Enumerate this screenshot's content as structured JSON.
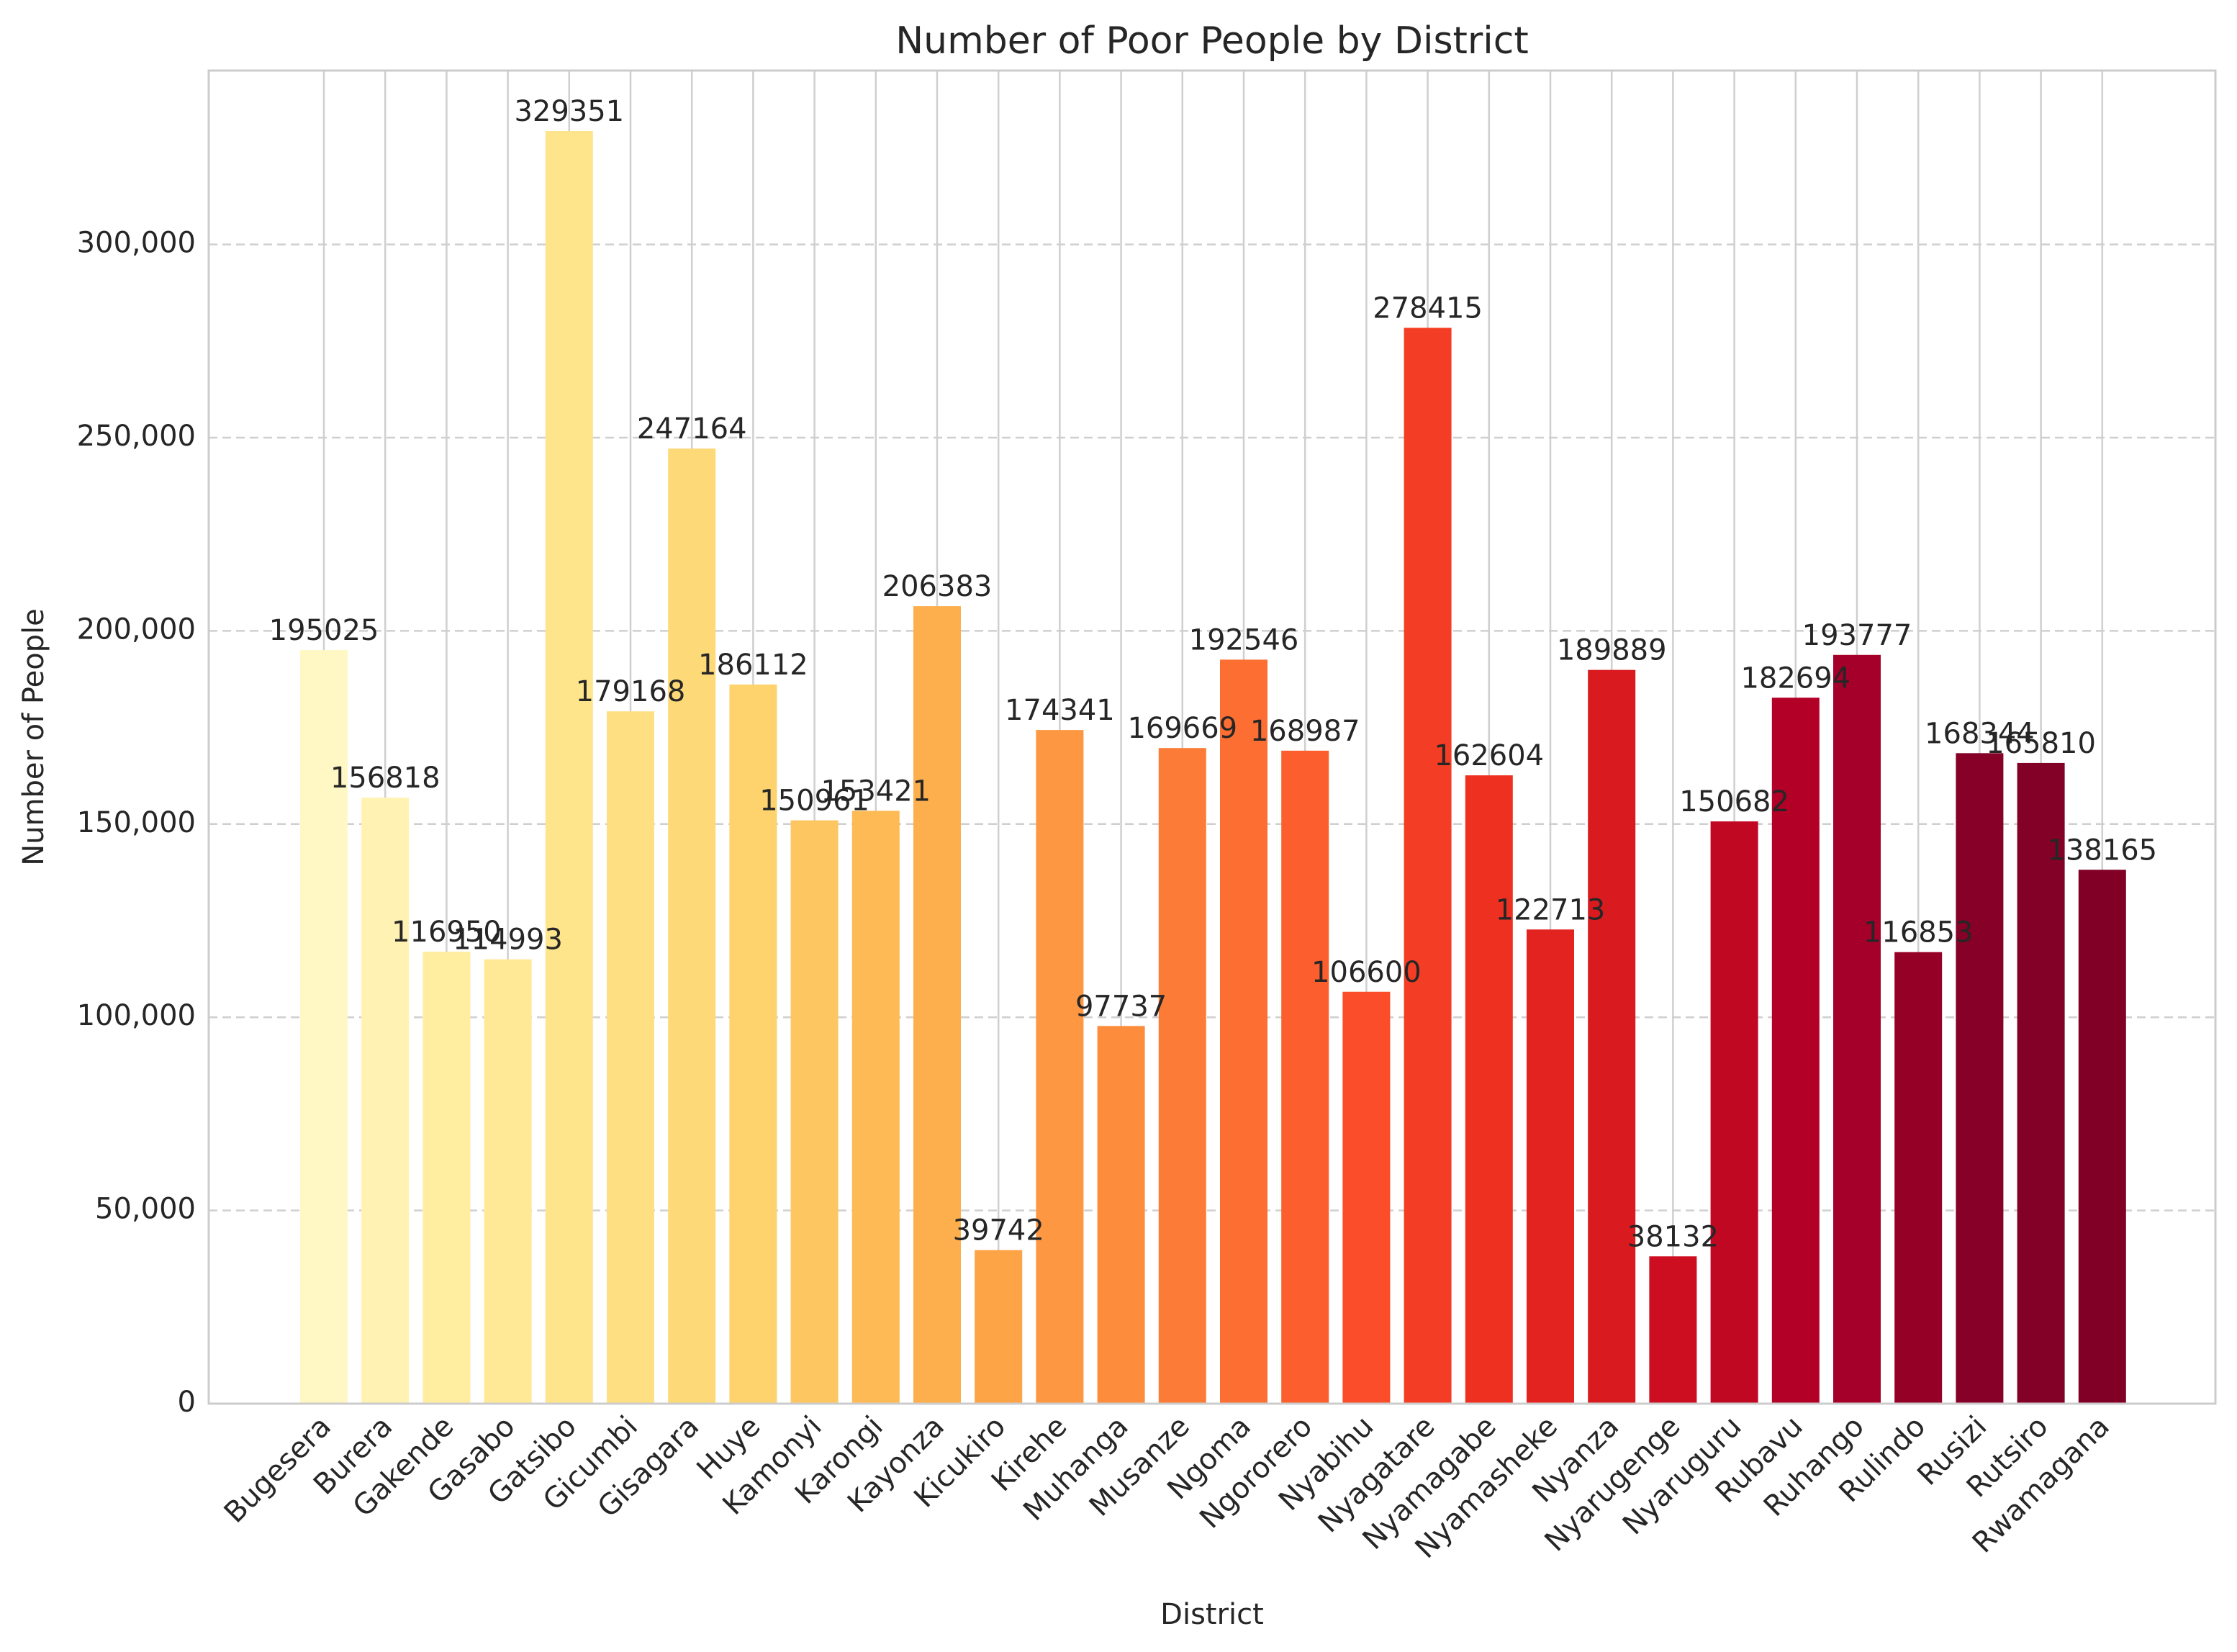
{
  "chart_data": {
    "type": "bar",
    "title": "Number of Poor People by District",
    "xlabel": "District",
    "ylabel": "Number of People",
    "ylim": [
      0,
      345000
    ],
    "yticks": [
      0,
      50000,
      100000,
      150000,
      200000,
      250000,
      300000
    ],
    "ytick_labels": [
      "0",
      "50,000",
      "100,000",
      "150,000",
      "200,000",
      "250,000",
      "300,000"
    ],
    "grid": "on (vertical solid, horizontal dashed)",
    "colormap": "YlOrRd",
    "categories": [
      "Bugesera",
      "Burera",
      "Gakende",
      "Gasabo",
      "Gatsibo",
      "Gicumbi",
      "Gisagara",
      "Huye",
      "Kamonyi",
      "Karongi",
      "Kayonza",
      "Kicukiro",
      "Kirehe",
      "Muhanga",
      "Musanze",
      "Ngoma",
      "Ngororero",
      "Nyabihu",
      "Nyagatare",
      "Nyamagabe",
      "Nyamasheke",
      "Nyanza",
      "Nyarugenge",
      "Nyaruguru",
      "Rubavu",
      "Ruhango",
      "Rulindo",
      "Rusizi",
      "Rutsiro",
      "Rwamagana"
    ],
    "values": [
      195025,
      156818,
      116950,
      114993,
      329351,
      179168,
      247164,
      186112,
      150961,
      153421,
      206383,
      39742,
      174341,
      97737,
      169669,
      192546,
      168987,
      106600,
      278415,
      162604,
      122713,
      189889,
      38132,
      150682,
      182694,
      193777,
      116853,
      168344,
      165810,
      138165
    ],
    "bar_labels": [
      "195025",
      "156818",
      "116950",
      "114993",
      "329351",
      "179168",
      "247164",
      "186112",
      "150961",
      "153421",
      "206383",
      "39742",
      "174341",
      "97737",
      "169669",
      "192546",
      "168987",
      "106600",
      "278415",
      "162604",
      "122713",
      "189889",
      "38132",
      "150682",
      "182694",
      "193777",
      "116853",
      "168344",
      "165810",
      "138165"
    ],
    "colors": [
      "#fff8c4",
      "#fff2b2",
      "#ffeda0",
      "#ffe996",
      "#fee48b",
      "#fedf82",
      "#fed977",
      "#fed26c",
      "#fec661",
      "#feba55",
      "#fdaf4d",
      "#fda447",
      "#fd9741",
      "#fd8c3c",
      "#fc7c37",
      "#fd6e33",
      "#fc5e2e",
      "#fb4d29",
      "#f43d25",
      "#ee3021",
      "#e2231f",
      "#d91b20",
      "#cd0e21",
      "#c10823",
      "#b20026",
      "#a5002a",
      "#950026",
      "#870027",
      "#830026",
      "#800026"
    ]
  }
}
